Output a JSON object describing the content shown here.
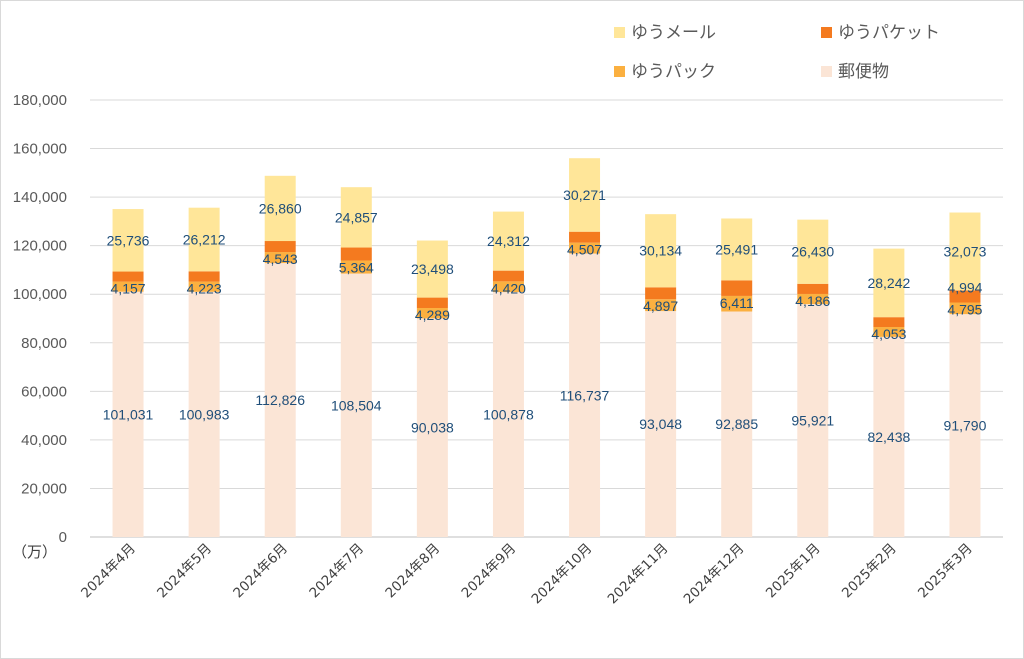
{
  "chart_data": {
    "type": "bar",
    "stacked": true,
    "unit_label": "（万）",
    "categories": [
      "2024年4月",
      "2024年5月",
      "2024年6月",
      "2024年7月",
      "2024年8月",
      "2024年9月",
      "2024年10月",
      "2024年11月",
      "2024年12月",
      "2025年1月",
      "2025年2月",
      "2025年3月"
    ],
    "series": [
      {
        "name": "郵便物",
        "color": "#fbe5d6",
        "values": [
          101031,
          100983,
          112826,
          108504,
          90038,
          100878,
          116737,
          93048,
          92885,
          95921,
          82438,
          91790
        ]
      },
      {
        "name": "ゆうパック",
        "color": "#fbb040",
        "values": [
          4157,
          4223,
          4543,
          5364,
          4289,
          4420,
          4507,
          4897,
          6411,
          4186,
          4053,
          4795
        ]
      },
      {
        "name": "ゆうパケット",
        "color": "#f47a1f",
        "values": [
          4157,
          4223,
          4543,
          5364,
          4289,
          4420,
          4507,
          4897,
          6411,
          4186,
          4053,
          4994
        ]
      },
      {
        "name": "ゆうメール",
        "color": "#ffe699",
        "values": [
          25736,
          26212,
          26860,
          24857,
          23498,
          24312,
          30271,
          30134,
          25491,
          26430,
          28242,
          32073
        ]
      }
    ],
    "data_labels": {
      "郵便物": [
        "101,031",
        "100,983",
        "112,826",
        "108,504",
        "90,038",
        "100,878",
        "116,737",
        "93,048",
        "92,885",
        "95,921",
        "82,438",
        "91,790"
      ],
      "ゆうパック": [
        "4,157",
        "4,223",
        "4,543",
        "5,364",
        "4,289",
        "4,420",
        "4,507",
        "4,897",
        "6,411",
        "4,186",
        "4,053",
        "4,795"
      ],
      "ゆうパケット": [
        "",
        "",
        "",
        "",
        "",
        "",
        "",
        "",
        "",
        "",
        "",
        "4,994"
      ],
      "ゆうメール": [
        "25,736",
        "26,212",
        "26,860",
        "24,857",
        "23,498",
        "24,312",
        "30,271",
        "30,134",
        "25,491",
        "26,430",
        "28,242",
        "32,073"
      ]
    },
    "ylim": [
      0,
      180000
    ],
    "yticks": [
      0,
      20000,
      40000,
      60000,
      80000,
      100000,
      120000,
      140000,
      160000,
      180000
    ],
    "ytick_labels": [
      "0",
      "20,000",
      "40,000",
      "60,000",
      "80,000",
      "100,000",
      "120,000",
      "140,000",
      "160,000",
      "180,000"
    ],
    "grid": true,
    "legend_position": "top-right",
    "legend": [
      {
        "label": "ゆうメール",
        "color": "#ffe699"
      },
      {
        "label": "ゆうパケット",
        "color": "#f47a1f"
      },
      {
        "label": "ゆうパック",
        "color": "#fbb040"
      },
      {
        "label": "郵便物",
        "color": "#fbe5d6"
      }
    ]
  }
}
